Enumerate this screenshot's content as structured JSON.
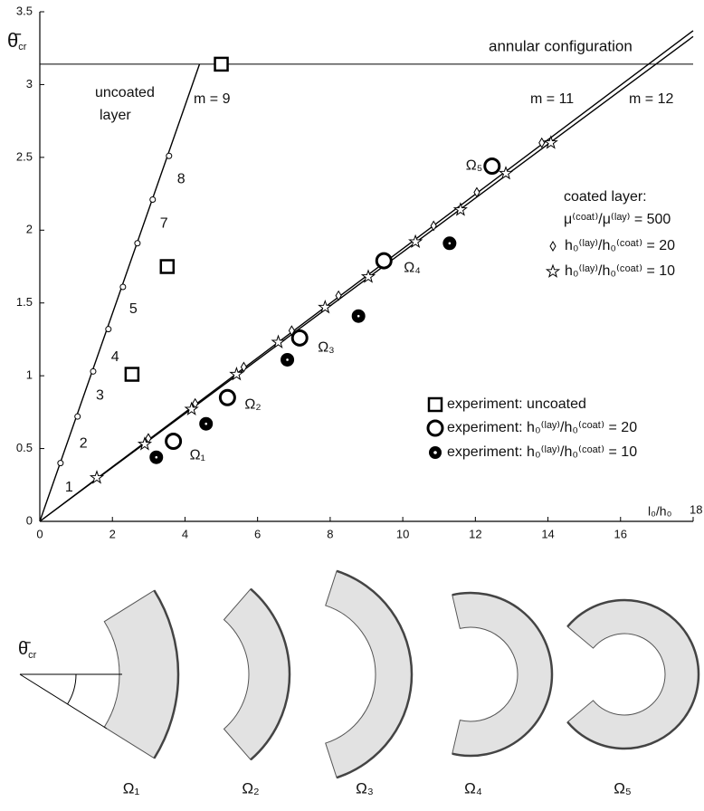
{
  "chart_data": {
    "type": "scatter",
    "ylabel": {
      "main": "θ̄",
      "sub": "cr"
    },
    "xlabel": "l₀/h₀",
    "xlim": [
      0,
      18
    ],
    "ylim": [
      0,
      3.5
    ],
    "xticks": [
      0,
      2,
      4,
      6,
      8,
      10,
      12,
      14,
      16,
      18
    ],
    "yticks": [
      0,
      0.5,
      1,
      1.5,
      2,
      2.5,
      3,
      3.5
    ],
    "grid": false,
    "hline": {
      "value": 3.14,
      "label": "annular configuration"
    },
    "annotations": [
      "uncoated",
      "layer",
      "m = 9",
      "m = 11",
      "m = 12",
      "coated layer:",
      "μ⁽ᶜᵒᵃᵗ⁾/μ⁽ˡᵃʸ⁾ = 500"
    ],
    "series": [
      {
        "marker": "none",
        "line": true,
        "color": "#000000",
        "x": [
          0,
          4.4
        ],
        "values": [
          0,
          3.14
        ]
      },
      {
        "marker": "small-circle",
        "line": false,
        "color": "#000000",
        "x": [
          0.57,
          1.04,
          1.47,
          1.89,
          2.29,
          2.69,
          3.11,
          3.56
        ],
        "values": [
          0.4,
          0.72,
          1.03,
          1.32,
          1.61,
          1.91,
          2.21,
          2.51
        ],
        "point_labels": [
          "1",
          "2",
          "3",
          "4",
          "5",
          null,
          "7",
          "8"
        ]
      },
      {
        "marker": "none",
        "line": true,
        "color": "#000000",
        "x": [
          0,
          18
        ],
        "values": [
          0,
          3.37
        ]
      },
      {
        "marker": "none",
        "line": true,
        "color": "#000000",
        "x": [
          0,
          18
        ],
        "values": [
          0,
          3.33
        ]
      },
      {
        "name": "h₀⁽ˡᵃʸ⁾/h₀⁽ᶜᵒᵃᵗ⁾ = 20",
        "marker": "diamond",
        "line": false,
        "color": "#000000",
        "x": [
          2.99,
          4.28,
          5.62,
          6.94,
          8.23,
          9.55,
          10.85,
          12.04,
          13.83
        ],
        "values": [
          0.57,
          0.81,
          1.06,
          1.31,
          1.55,
          1.8,
          2.03,
          2.26,
          2.6
        ]
      },
      {
        "name": "h₀⁽ˡᵃʸ⁾/h₀⁽ᶜᵒᵃᵗ⁾ = 10",
        "marker": "star",
        "line": false,
        "color": "#000000",
        "x": [
          1.57,
          2.89,
          4.18,
          5.42,
          6.57,
          7.86,
          9.05,
          10.35,
          11.59,
          12.84,
          14.08
        ],
        "values": [
          0.3,
          0.53,
          0.77,
          1.01,
          1.23,
          1.47,
          1.68,
          1.92,
          2.14,
          2.39,
          2.6
        ]
      },
      {
        "name": "experiment:  uncoated",
        "marker": "square",
        "line": false,
        "color": "#000000",
        "x": [
          2.54,
          3.51,
          5.0
        ],
        "values": [
          1.01,
          1.75,
          3.14
        ]
      },
      {
        "name": "experiment:  h₀⁽ˡᵃʸ⁾/h₀⁽ᶜᵒᵃᵗ⁾ = 20",
        "marker": "circle",
        "line": false,
        "color": "#000000",
        "x": [
          3.68,
          5.17,
          7.16,
          9.48,
          12.46
        ],
        "values": [
          0.55,
          0.85,
          1.26,
          1.79,
          2.44
        ],
        "point_labels": [
          "Ω₁",
          "Ω₂",
          "Ω₃",
          "Ω₄",
          "Ω₅"
        ]
      },
      {
        "name": "experiment:  h₀⁽ˡᵃʸ⁾/h₀⁽ᶜᵒᵃᵗ⁾ = 10",
        "marker": "ring-dot",
        "line": false,
        "color": "#000000",
        "x": [
          3.21,
          4.58,
          6.82,
          8.78,
          11.29
        ],
        "values": [
          0.44,
          0.67,
          1.11,
          1.41,
          1.91
        ]
      }
    ]
  },
  "diagram": {
    "angle_label": {
      "main": "θ̄",
      "sub": "cr"
    },
    "shape_labels": [
      "Ω₁",
      "Ω₂",
      "Ω₃",
      "Ω₄",
      "Ω₅"
    ]
  }
}
